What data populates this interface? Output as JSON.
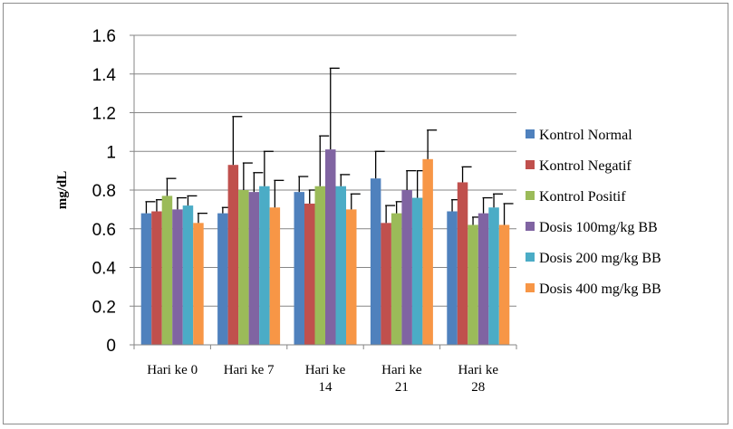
{
  "chart_data": {
    "type": "bar",
    "title": "",
    "xlabel": "",
    "ylabel": "mg/dL",
    "ylim": [
      0,
      1.6
    ],
    "yticks": [
      "0",
      "0.2",
      "0.4",
      "0.6",
      "0.8",
      "1",
      "1.2",
      "1.4",
      "1.6"
    ],
    "grid": true,
    "legend_position": "right",
    "categories": [
      [
        "Hari ke 0"
      ],
      [
        "Hari ke 7"
      ],
      [
        "Hari ke",
        "14"
      ],
      [
        "Hari ke",
        "21"
      ],
      [
        "Hari ke",
        "28"
      ]
    ],
    "series": [
      {
        "name": "Kontrol Normal",
        "color": "#4f81bd",
        "values": [
          0.68,
          0.68,
          0.79,
          0.86,
          0.69
        ],
        "errors": [
          0.06,
          0.03,
          0.08,
          0.14,
          0.06
        ]
      },
      {
        "name": "Kontrol Negatif",
        "color": "#c0504d",
        "values": [
          0.69,
          0.93,
          0.73,
          0.63,
          0.84
        ],
        "errors": [
          0.06,
          0.25,
          0.07,
          0.09,
          0.08
        ]
      },
      {
        "name": "Kontrol Positif",
        "color": "#9bbb59",
        "values": [
          0.77,
          0.8,
          0.82,
          0.68,
          0.62
        ],
        "errors": [
          0.09,
          0.14,
          0.26,
          0.06,
          0.04
        ]
      },
      {
        "name": "Dosis 100mg/kg BB",
        "color": "#8064a2",
        "values": [
          0.7,
          0.79,
          1.01,
          0.8,
          0.68
        ],
        "errors": [
          0.06,
          0.1,
          0.42,
          0.1,
          0.08
        ]
      },
      {
        "name": "Dosis 200 mg/kg BB",
        "color": "#4bacc6",
        "values": [
          0.72,
          0.82,
          0.82,
          0.76,
          0.71
        ],
        "errors": [
          0.05,
          0.18,
          0.06,
          0.14,
          0.07
        ]
      },
      {
        "name": "Dosis 400 mg/kg BB",
        "color": "#f79646",
        "values": [
          0.63,
          0.71,
          0.7,
          0.96,
          0.62
        ],
        "errors": [
          0.05,
          0.14,
          0.08,
          0.15,
          0.11
        ]
      }
    ]
  }
}
